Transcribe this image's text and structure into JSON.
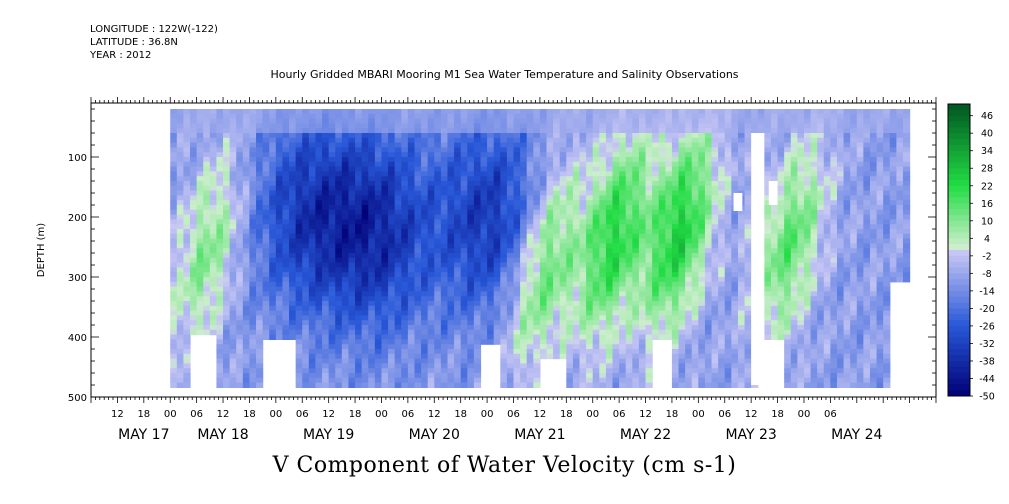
{
  "header": {
    "longitude": "LONGITUDE : 122W(-122)",
    "latitude": "LATITUDE : 36.8N",
    "year": "YEAR : 2012"
  },
  "chart_data": {
    "type": "heatmap",
    "title": "Hourly Gridded MBARI Mooring M1 Sea Water Temperature and Salinity Observations",
    "variable_title": "V Component of Water Velocity (cm s-1)",
    "ylabel": "DEPTH (m)",
    "ylim": [
      500,
      10
    ],
    "y_ticks": [
      100,
      200,
      300,
      400,
      500
    ],
    "x_hour_ticks": [
      "12",
      "18",
      "00",
      "06",
      "12",
      "18",
      "00",
      "06",
      "12",
      "18",
      "00",
      "06",
      "12",
      "18",
      "00",
      "06",
      "12",
      "18",
      "00",
      "06",
      "12",
      "18",
      "00",
      "06",
      "12",
      "18",
      "00",
      "06"
    ],
    "x_date_labels": [
      {
        "label": "MAY 17",
        "hour": 12
      },
      {
        "label": "MAY 18",
        "hour": 0
      },
      {
        "label": "MAY 19",
        "hour": 0
      },
      {
        "label": "MAY 20",
        "hour": 0
      },
      {
        "label": "MAY 21",
        "hour": 0
      },
      {
        "label": "MAY 22",
        "hour": 0
      },
      {
        "label": "MAY 23",
        "hour": 0
      },
      {
        "label": "MAY 24",
        "hour": 0
      }
    ],
    "colorbar": {
      "levels": [
        46,
        40,
        34,
        28,
        22,
        16,
        10,
        4,
        -2,
        -8,
        -14,
        -20,
        -26,
        -32,
        -38,
        -44,
        -50
      ],
      "min": -50,
      "max": 50
    },
    "data_time_range_hours": [
      18,
      186
    ],
    "data_depth_range_m": [
      20,
      480
    ],
    "patterns": [
      {
        "name": "blue core May 18",
        "t_center": 48,
        "z_center": 190,
        "v": -32
      },
      {
        "name": "blue core May 19",
        "t_center": 64,
        "z_center": 220,
        "v": -36
      },
      {
        "name": "blue core May 20",
        "t_center": 90,
        "z_center": 200,
        "v": -34
      },
      {
        "name": "green band May 21",
        "t_center": 102,
        "z_center": 280,
        "v": 18
      },
      {
        "name": "green band May 21-22",
        "t_center": 118,
        "z_center": 230,
        "v": 22
      },
      {
        "name": "green band May 22",
        "t_center": 133,
        "z_center": 220,
        "v": 24
      },
      {
        "name": "green band May 23",
        "t_center": 158,
        "z_center": 240,
        "v": 14
      },
      {
        "name": "green patch May 17",
        "t_center": 26,
        "z_center": 250,
        "v": 10
      }
    ],
    "colors": {
      "neg_max": "#000077",
      "neg_mid": "#2858d8",
      "near_zero_neg": "#c6c6f4",
      "near_zero_pos": "#cceecc",
      "pos_mid": "#22dd44",
      "pos_max": "#005522"
    }
  }
}
